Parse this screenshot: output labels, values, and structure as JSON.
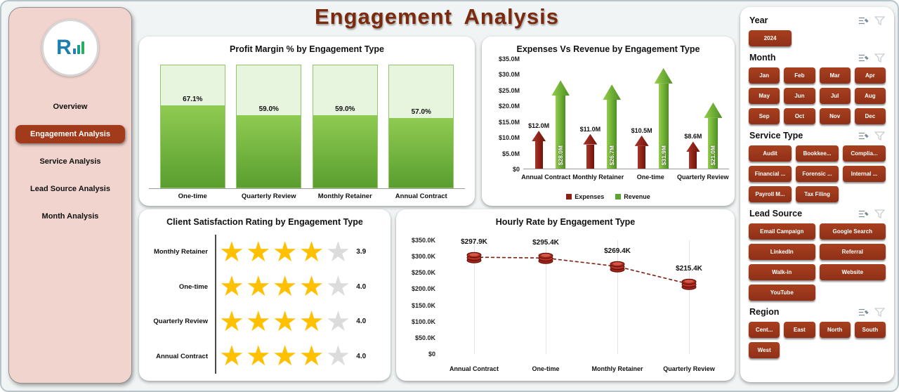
{
  "title": "Engagement Analysis",
  "sidebar": {
    "logo_letter": "R",
    "items": [
      {
        "label": "Overview",
        "active": false
      },
      {
        "label": "Engagement  Analysis",
        "active": true
      },
      {
        "label": "Service Analysis",
        "active": false
      },
      {
        "label": "Lead Source Analysis",
        "active": false
      },
      {
        "label": "Month Analysis",
        "active": false
      }
    ]
  },
  "colors": {
    "accent_brick": "#a23b1c",
    "expenses_red": "#8b2016",
    "revenue_green": "#5ea332",
    "star_gold": "#ffc000",
    "sidebar_pink": "#f2d4ce",
    "title_brown": "#7b2a0e"
  },
  "chart_data": [
    {
      "type": "bar",
      "title": "Profit Margin % by Engagement Type",
      "categories": [
        "One-time",
        "Quarterly Review",
        "Monthly Retainer",
        "Annual Contract"
      ],
      "values": [
        67.1,
        59.0,
        59.0,
        57.0
      ],
      "value_labels": [
        "67.1%",
        "59.0%",
        "59.0%",
        "57.0%"
      ],
      "ylim": [
        0,
        100
      ],
      "grid": false
    },
    {
      "type": "bar",
      "title": "Expenses Vs Revenue by Engagement Type",
      "categories": [
        "Annual Contract",
        "Monthly Retainer",
        "One-time",
        "Quarterly Review"
      ],
      "series": [
        {
          "name": "Expenses",
          "values": [
            12.0,
            11.0,
            10.5,
            8.6
          ],
          "labels": [
            "$12.0M",
            "$11.0M",
            "$10.5M",
            "$8.6M"
          ],
          "color": "#8b2016"
        },
        {
          "name": "Revenue",
          "values": [
            28.0,
            26.7,
            31.9,
            21.0
          ],
          "labels": [
            "$28.0M",
            "$26.7M",
            "$31.9M",
            "$21.0M"
          ],
          "color": "#5ea332"
        }
      ],
      "yticks": [
        "$35.0M",
        "$30.0M",
        "$25.0M",
        "$20.0M",
        "$15.0M",
        "$10.0M",
        "$5.0M",
        "$0"
      ],
      "ylim": [
        0,
        35
      ],
      "legend_position": "bottom",
      "grid": false
    },
    {
      "type": "table",
      "title": "Client Satisfaction Rating by Engagement Type",
      "subtype": "star-rating",
      "categories": [
        "Monthly Retainer",
        "One-time",
        "Quarterly Review",
        "Annual Contract"
      ],
      "values": [
        3.9,
        4.0,
        4.0,
        4.0
      ],
      "max_rating": 5
    },
    {
      "type": "line",
      "title": "Hourly Rate by Engagement Type",
      "categories": [
        "Annual Contract",
        "One-time",
        "Monthly Retainer",
        "Quarterly Review"
      ],
      "values": [
        297.9,
        295.4,
        269.4,
        215.4
      ],
      "labels": [
        "$297.9K",
        "$295.4K",
        "$269.4K",
        "$215.4K"
      ],
      "yticks": [
        "$350.0K",
        "$300.0K",
        "$250.0K",
        "$200.0K",
        "$150.0K",
        "$100.0K",
        "$50.0K",
        "$0"
      ],
      "ylim": [
        0,
        350
      ],
      "line_style": "dashed",
      "marker": "coin-stack",
      "grid": true
    }
  ],
  "filters": {
    "header_icons": [
      "clear-selections",
      "filter-funnel"
    ],
    "sections": [
      {
        "title": "Year",
        "cols": 3,
        "options": [
          "2024"
        ]
      },
      {
        "title": "Month",
        "cols": 4,
        "options": [
          "Jan",
          "Feb",
          "Mar",
          "Apr",
          "May",
          "Jun",
          "Jul",
          "Aug",
          "Sep",
          "Oct",
          "Nov",
          "Dec"
        ]
      },
      {
        "title": "Service Type",
        "cols": 3,
        "options": [
          "Audit",
          "Bookkee...",
          "Complia...",
          "Financial ...",
          "Forensic ...",
          "Internal ...",
          "Payroll M...",
          "Tax Filing"
        ]
      },
      {
        "title": "Lead Source",
        "cols": 2,
        "options": [
          "Email Campaign",
          "Google Search",
          "LinkedIn",
          "Referral",
          "Walk-in",
          "Website",
          "YouTube"
        ]
      },
      {
        "title": "Region",
        "cols": 4,
        "options": [
          "Cent...",
          "East",
          "North",
          "South",
          "West"
        ]
      }
    ]
  }
}
